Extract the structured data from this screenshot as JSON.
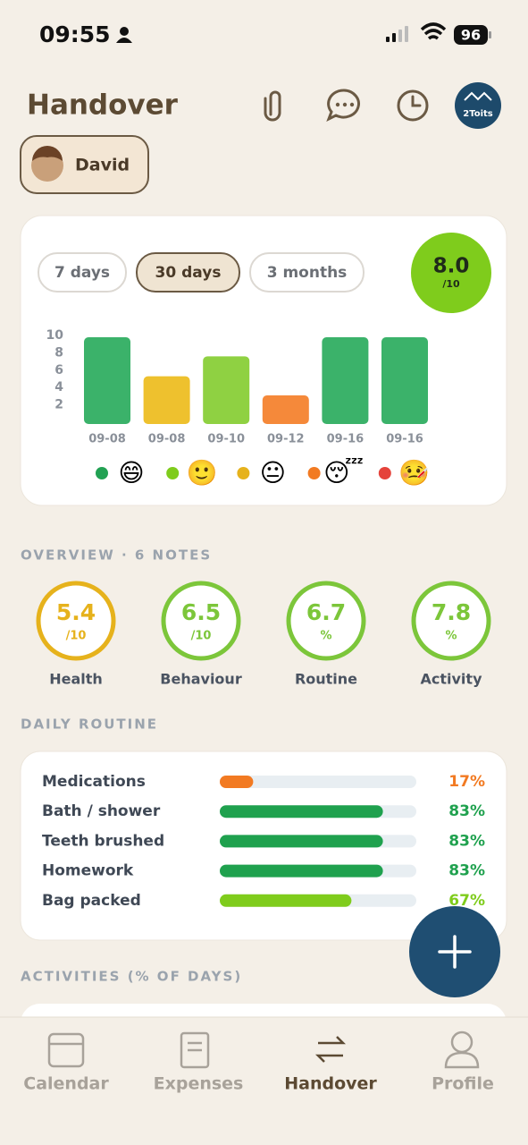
{
  "status_bar": {
    "time": "09:55",
    "battery": "96"
  },
  "header": {
    "title": "Handover",
    "avatar_text": "2Toits"
  },
  "child": {
    "name": "David"
  },
  "ranges": {
    "options": [
      "7 days",
      "30 days",
      "3 months"
    ],
    "selected": "30 days"
  },
  "score": {
    "value": "8.0",
    "unit": "/10",
    "color": "#7fcc1c"
  },
  "chart_data": {
    "type": "bar",
    "categories": [
      "09-08",
      "09-08",
      "09-10",
      "09-12",
      "09-16",
      "09-16"
    ],
    "values": [
      10,
      5.5,
      7.8,
      3.3,
      10,
      10
    ],
    "colors": [
      "#3bb26a",
      "#eec12e",
      "#8fd142",
      "#f5893a",
      "#3bb26a",
      "#3bb26a"
    ],
    "ylim": [
      0,
      10
    ],
    "yticks": [
      2,
      4,
      6,
      8,
      10
    ],
    "legend": [
      {
        "color": "#22a153",
        "label": "😄"
      },
      {
        "color": "#7fcc1c",
        "label": "🙂"
      },
      {
        "color": "#e6b21c",
        "label": "😐"
      },
      {
        "color": "#f27a22",
        "label": "😴"
      },
      {
        "color": "#e5433b",
        "label": "🤒"
      }
    ]
  },
  "overview": {
    "title": "OVERVIEW · 6 NOTES",
    "items": [
      {
        "label": "Health",
        "value": "5.4",
        "unit": "/10",
        "color": "#e6b21c"
      },
      {
        "label": "Behaviour",
        "value": "6.5",
        "unit": "/10",
        "color": "#7cc63a"
      },
      {
        "label": "Routine",
        "value": "6.7",
        "unit": "%",
        "color": "#7cc63a"
      },
      {
        "label": "Activity",
        "value": "7.8",
        "unit": "%",
        "color": "#7cc63a"
      }
    ]
  },
  "daily_routine": {
    "title": "DAILY ROUTINE",
    "items": [
      {
        "label": "Medications",
        "value": 17,
        "value_label": "17%",
        "color": "#f27a22"
      },
      {
        "label": "Bath / shower",
        "value": 83,
        "value_label": "83%",
        "color": "#1fa14e"
      },
      {
        "label": "Teeth brushed",
        "value": 83,
        "value_label": "83%",
        "color": "#1fa14e"
      },
      {
        "label": "Homework",
        "value": 83,
        "value_label": "83%",
        "color": "#1fa14e"
      },
      {
        "label": "Bag packed",
        "value": 67,
        "value_label": "67%",
        "color": "#7fcc1c"
      }
    ]
  },
  "activities": {
    "title": "ACTIVITIES (% OF DAYS)"
  },
  "nav": {
    "items": [
      "Calendar",
      "Expenses",
      "Handover",
      "Profile"
    ],
    "active": "Handover"
  }
}
